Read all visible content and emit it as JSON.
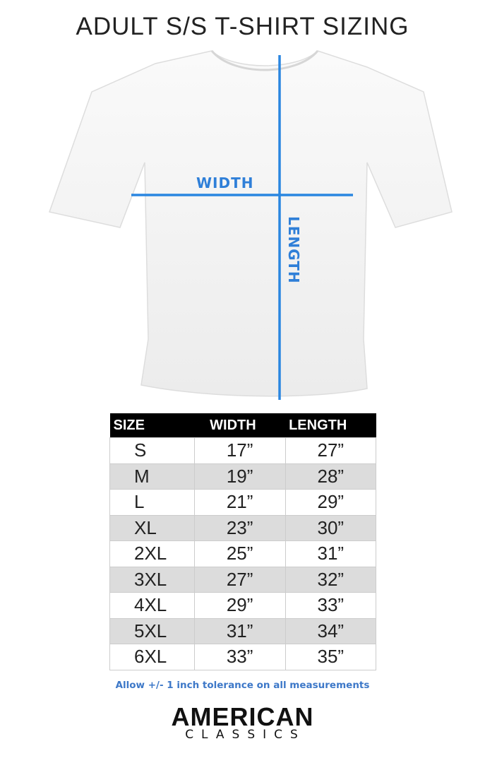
{
  "title": "ADULT S/S T-SHIRT SIZING",
  "diagram": {
    "width_label": "WIDTH",
    "length_label": "LENGTH",
    "line_color": "#2a86e0"
  },
  "table": {
    "headers": [
      "SIZE",
      "WIDTH",
      "LENGTH"
    ],
    "rows": [
      [
        "S",
        "17”",
        "27”"
      ],
      [
        "M",
        "19”",
        "28”"
      ],
      [
        "L",
        "21”",
        "29”"
      ],
      [
        "XL",
        "23”",
        "30”"
      ],
      [
        "2XL",
        "25”",
        "31”"
      ],
      [
        "3XL",
        "27”",
        "32”"
      ],
      [
        "4XL",
        "29”",
        "33”"
      ],
      [
        "5XL",
        "31”",
        "34”"
      ],
      [
        "6XL",
        "33”",
        "35”"
      ]
    ]
  },
  "note": "Allow +/- 1 inch tolerance on all measurements",
  "brand": {
    "line1": "AMERICAN",
    "line2": "CLASSICS"
  }
}
